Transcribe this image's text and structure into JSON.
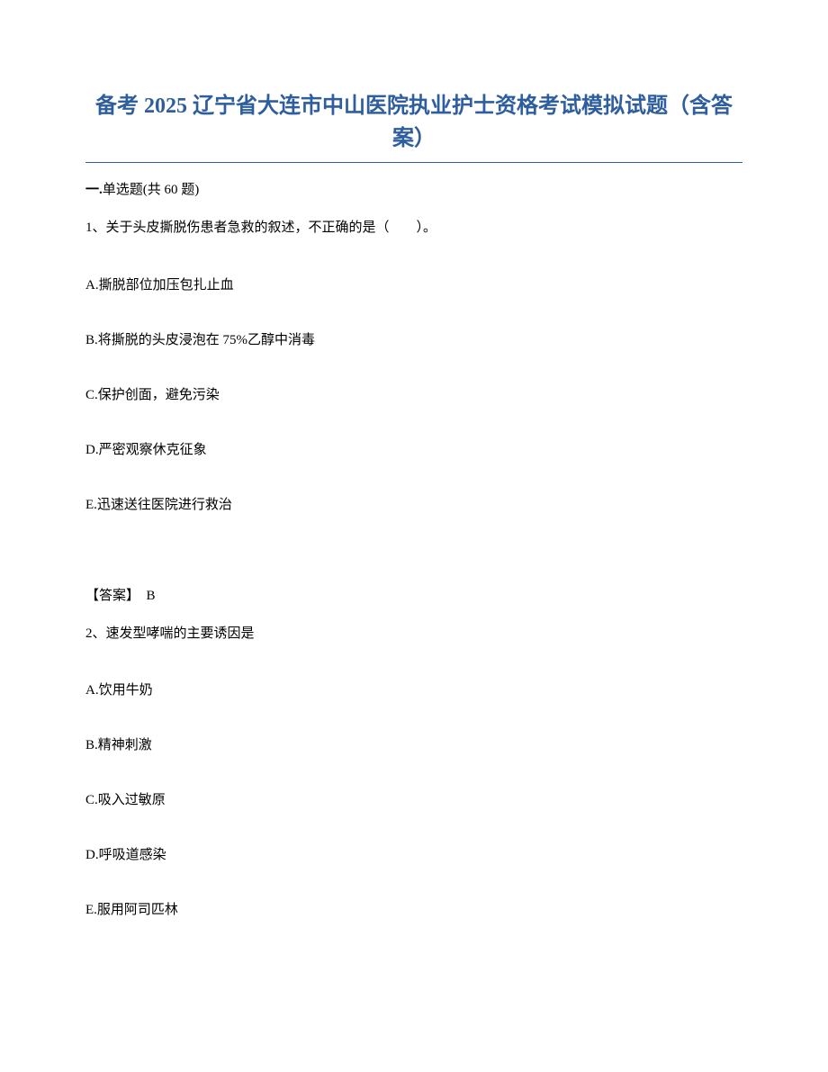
{
  "title": "备考 2025 辽宁省大连市中山医院执业护士资格考试模拟试题（含答案）",
  "section": {
    "label_prefix": "一.",
    "label_text": "单选题",
    "count_text": "(共 60 题)"
  },
  "questions": [
    {
      "number": "1、",
      "text": "关于头皮撕脱伤患者急救的叙述，不正确的是（　　）。",
      "options": [
        "A.撕脱部位加压包扎止血",
        "B.将撕脱的头皮浸泡在 75%乙醇中消毒",
        "C.保护创面，避免污染",
        "D.严密观察休克征象",
        "E.迅速送往医院进行救治"
      ],
      "answer_label": "【答案】",
      "answer_value": "B"
    },
    {
      "number": "2、",
      "text": "速发型哮喘的主要诱因是",
      "options": [
        "A.饮用牛奶",
        "B.精神刺激",
        "C.吸入过敏原",
        "D.呼吸道感染",
        "E.服用阿司匹林"
      ]
    }
  ]
}
